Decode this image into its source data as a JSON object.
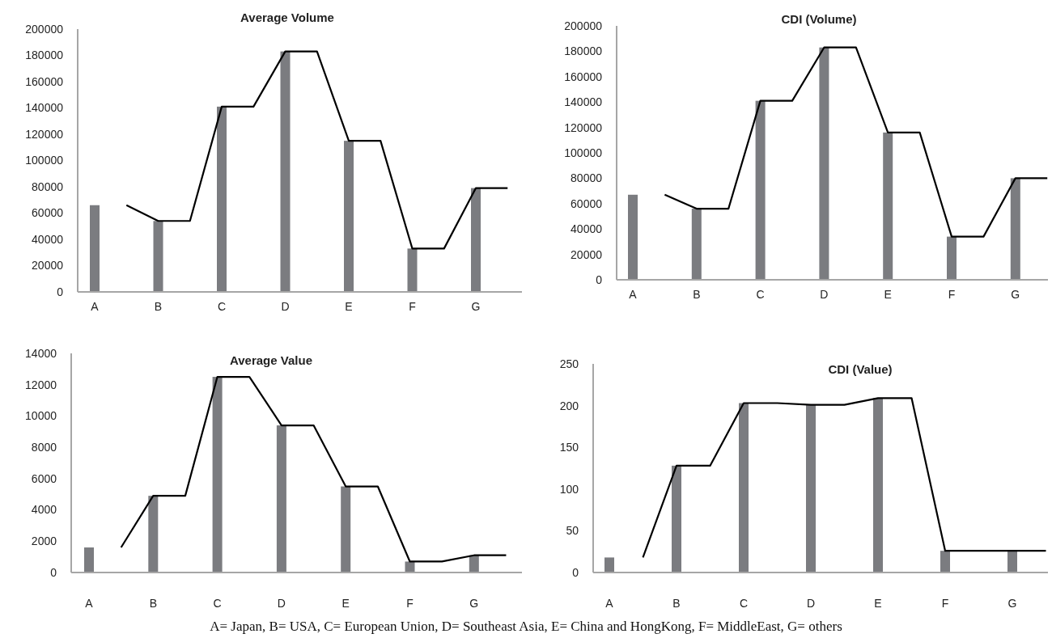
{
  "chart_data": [
    {
      "type": "bar",
      "title": "Average Volume",
      "categories": [
        "A",
        null,
        "B",
        null,
        "C",
        null,
        "D",
        null,
        "E",
        null,
        "F",
        null,
        "G",
        null
      ],
      "ylim": [
        0,
        200000
      ],
      "yticks": [
        0,
        20000,
        40000,
        60000,
        80000,
        100000,
        120000,
        140000,
        160000,
        180000,
        200000
      ],
      "series": [
        {
          "color": "#7b7c80",
          "values": [
            66000,
            null,
            54000,
            null,
            141000,
            null,
            183000,
            null,
            115000,
            null,
            33000,
            null,
            79000,
            null
          ]
        },
        {
          "type": "line",
          "color": "#000000",
          "values": [
            null,
            66000,
            54000,
            54000,
            141000,
            141000,
            183000,
            183000,
            115000,
            115000,
            33000,
            33000,
            79000,
            79000
          ]
        }
      ]
    },
    {
      "type": "bar",
      "title": "CDI (Volume)",
      "categories": [
        "A",
        null,
        "B",
        null,
        "C",
        null,
        "D",
        null,
        "E",
        null,
        "F",
        null,
        "G",
        null
      ],
      "ylim": [
        0,
        200000
      ],
      "yticks": [
        0,
        20000,
        40000,
        60000,
        80000,
        100000,
        120000,
        140000,
        160000,
        180000,
        200000
      ],
      "series": [
        {
          "color": "#7b7c80",
          "values": [
            67000,
            null,
            56000,
            null,
            141000,
            null,
            183000,
            null,
            116000,
            null,
            34000,
            null,
            80000,
            null
          ]
        },
        {
          "type": "line",
          "color": "#000000",
          "values": [
            null,
            67000,
            56000,
            56000,
            141000,
            141000,
            183000,
            183000,
            116000,
            116000,
            34000,
            34000,
            80000,
            80000
          ]
        }
      ]
    },
    {
      "type": "bar",
      "title": "Average Value",
      "categories": [
        "A",
        null,
        "B",
        null,
        "C",
        null,
        "D",
        null,
        "E",
        null,
        "F",
        null,
        "G",
        null
      ],
      "ylim": [
        0,
        14000
      ],
      "yticks": [
        0,
        2000,
        4000,
        6000,
        8000,
        10000,
        12000,
        14000
      ],
      "series": [
        {
          "color": "#7b7c80",
          "values": [
            1600,
            null,
            4900,
            null,
            12500,
            null,
            9400,
            null,
            5500,
            null,
            700,
            null,
            1100,
            null
          ]
        },
        {
          "type": "line",
          "color": "#000000",
          "values": [
            null,
            1600,
            4900,
            4900,
            12500,
            12500,
            9400,
            9400,
            5500,
            5500,
            700,
            700,
            1100,
            1100
          ]
        }
      ]
    },
    {
      "type": "bar",
      "title": "CDI (Value)",
      "categories": [
        "A",
        null,
        "B",
        null,
        "C",
        null,
        "D",
        null,
        "E",
        null,
        "F",
        null,
        "G",
        null
      ],
      "ylim": [
        0,
        250
      ],
      "yticks": [
        0,
        50,
        100,
        150,
        200,
        250
      ],
      "series": [
        {
          "color": "#7b7c80",
          "values": [
            18,
            null,
            128,
            null,
            203,
            null,
            201,
            null,
            209,
            null,
            26,
            null,
            26,
            null
          ]
        },
        {
          "type": "line",
          "color": "#000000",
          "values": [
            null,
            18,
            128,
            128,
            203,
            203,
            201,
            201,
            209,
            209,
            26,
            26,
            26,
            26
          ]
        }
      ],
      "annotations": [
        "A= Japan, B= USA, C= European Union, D= Southeast Asia, E= China and HongKong, F= MiddleEast, G= others"
      ]
    }
  ]
}
